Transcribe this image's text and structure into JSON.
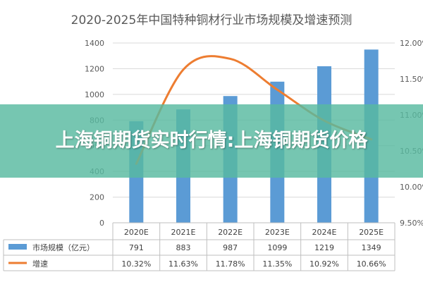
{
  "overlay": {
    "headline": "上海铜期货实时行情:上海铜期货价格"
  },
  "colors": {
    "bar": "#5b9bd5",
    "line": "#ed7d31",
    "grid": "#d9d9d9",
    "banner": "#58baa0"
  },
  "chart_data": {
    "type": "bar",
    "title": "2020-2025年中国特种铜材行业市场规模及增速预测",
    "categories": [
      "2020E",
      "2021E",
      "2022E",
      "2023E",
      "2024E",
      "2025E"
    ],
    "series": [
      {
        "name": "市场规模（亿元）",
        "type": "bar",
        "axis": "left",
        "values": [
          791,
          883,
          987,
          1099,
          1219,
          1349
        ],
        "labels": [
          "791",
          "883",
          "987",
          "1099",
          "1219",
          "1349"
        ]
      },
      {
        "name": "增速",
        "type": "line",
        "axis": "right",
        "values": [
          10.32,
          11.63,
          11.78,
          11.35,
          10.92,
          10.66
        ],
        "labels": [
          "10.32%",
          "11.63%",
          "11.78%",
          "11.35%",
          "10.92%",
          "10.66%"
        ]
      }
    ],
    "y_left": {
      "ylim": [
        0,
        1400
      ],
      "ticks": [
        "0",
        "200",
        "400",
        "600",
        "800",
        "1000",
        "1200",
        "1400"
      ]
    },
    "y_right": {
      "ylim": [
        9.5,
        12.0
      ],
      "ticks": [
        "9.50%",
        "10.00%",
        "10.50%",
        "11.00%",
        "11.50%",
        "12.00%"
      ]
    },
    "grid": true,
    "legend": "data-table"
  }
}
